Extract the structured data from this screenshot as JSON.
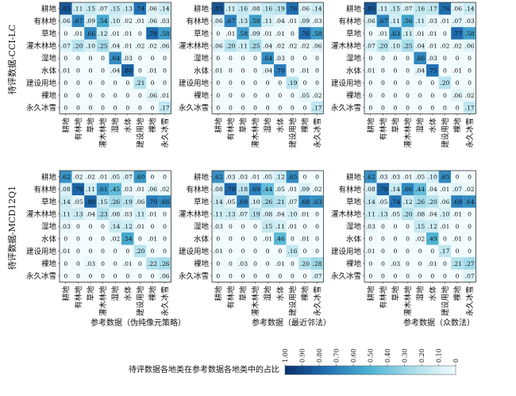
{
  "chart_data": {
    "type": "heatmap",
    "categories": [
      "耕地",
      "有林地",
      "草地",
      "灌木林地",
      "湿地",
      "水体",
      "建设用地",
      "裸地",
      "永久冰雪"
    ],
    "row_titles": [
      "待评数据-CCI-LC",
      "待评数据-MCD12Q1"
    ],
    "column_titles": [
      "参考数据（伪纯像元策略）",
      "参考数据（最近邻法）",
      "参考数据（众数法）"
    ],
    "colorbar": {
      "label": "待评数据各地类在参考数据各地类中的占比",
      "ticks": [
        "1.00",
        "0.90",
        "0.80",
        "0.70",
        "0.60",
        "0.50",
        "0.40",
        "0.30",
        "0.20",
        "0.10",
        "0"
      ],
      "range": [
        1.0,
        0.0
      ]
    },
    "panels": [
      {
        "row": 0,
        "col": 0,
        "values": [
          [
            0.85,
            0.11,
            0.15,
            0.07,
            0.15,
            0.13,
            0.74,
            0.06,
            0.14
          ],
          [
            0.06,
            0.67,
            0.09,
            0.54,
            0.1,
            0.02,
            0.01,
            0.06,
            0.03
          ],
          [
            0,
            0.01,
            0.66,
            0.12,
            0.01,
            0.01,
            0,
            0.78,
            0.58
          ],
          [
            0.07,
            0.2,
            0.1,
            0.25,
            0.04,
            0.01,
            0.02,
            0.02,
            0.06
          ],
          [
            0,
            0,
            0,
            0,
            0.64,
            0.03,
            0,
            0,
            0
          ],
          [
            0.01,
            0,
            0,
            0,
            0.04,
            0.8,
            0,
            0.01,
            0
          ],
          [
            0,
            0,
            0,
            0,
            0,
            0,
            0.21,
            0,
            0
          ],
          [
            0,
            0,
            0,
            0,
            0,
            0,
            0,
            0.06,
            0.01
          ],
          [
            0,
            0,
            0,
            0,
            0,
            0,
            0,
            0,
            0.17
          ]
        ]
      },
      {
        "row": 0,
        "col": 1,
        "values": [
          [
            0.85,
            0.11,
            0.16,
            0.08,
            0.16,
            0.19,
            0.76,
            0.06,
            0.14
          ],
          [
            0.06,
            0.67,
            0.13,
            0.58,
            0.11,
            0.04,
            0.01,
            0.09,
            0.03
          ],
          [
            0,
            0.01,
            0.58,
            0.09,
            0.01,
            0.01,
            0,
            0.76,
            0.58
          ],
          [
            0.06,
            0.2,
            0.11,
            0.25,
            0.04,
            0.02,
            0.02,
            0.02,
            0.06
          ],
          [
            0,
            0,
            0,
            0,
            0.64,
            0.03,
            0,
            0,
            0
          ],
          [
            0.01,
            0,
            0,
            0,
            0.04,
            0.7,
            0,
            0.01,
            0
          ],
          [
            0,
            0,
            0,
            0,
            0,
            0,
            0.19,
            0,
            0
          ],
          [
            0,
            0,
            0,
            0,
            0,
            0,
            0,
            0.05,
            0.02
          ],
          [
            0,
            0,
            0,
            0,
            0,
            0,
            0,
            0,
            0.17
          ]
        ]
      },
      {
        "row": 0,
        "col": 2,
        "values": [
          [
            0.85,
            0.11,
            0.15,
            0.07,
            0.16,
            0.17,
            0.76,
            0.06,
            0.14
          ],
          [
            0.06,
            0.67,
            0.11,
            0.56,
            0.11,
            0.03,
            0.01,
            0.07,
            0.03
          ],
          [
            0,
            0.01,
            0.63,
            0.11,
            0.01,
            0.01,
            0,
            0.77,
            0.58
          ],
          [
            0.07,
            0.2,
            0.1,
            0.25,
            0.04,
            0.01,
            0.02,
            0.02,
            0.06
          ],
          [
            0,
            0,
            0,
            0,
            0.66,
            0.03,
            0,
            0,
            0
          ],
          [
            0.01,
            0,
            0,
            0,
            0.04,
            0.75,
            0,
            0.01,
            0
          ],
          [
            0,
            0,
            0,
            0,
            0,
            0,
            0.2,
            0,
            0
          ],
          [
            0,
            0,
            0,
            0,
            0,
            0,
            0,
            0.06,
            0.02
          ],
          [
            0,
            0,
            0,
            0,
            0,
            0,
            0,
            0,
            0.17
          ]
        ]
      },
      {
        "row": 1,
        "col": 0,
        "values": [
          [
            0.62,
            0.02,
            0.02,
            0.01,
            0.05,
            0.07,
            0.6,
            0,
            0
          ],
          [
            0.08,
            0.79,
            0.11,
            0.61,
            0.45,
            0.03,
            0.01,
            0.06,
            0.02
          ],
          [
            0.14,
            0.05,
            0.8,
            0.15,
            0.26,
            0.19,
            0.06,
            0.7,
            0.66
          ],
          [
            0.11,
            0.13,
            0.04,
            0.23,
            0.08,
            0.03,
            0.11,
            0.01,
            0
          ],
          [
            0.03,
            0,
            0,
            0,
            0.14,
            0.12,
            0.01,
            0,
            0
          ],
          [
            0,
            0,
            0,
            0,
            0.02,
            0.54,
            0,
            0.01,
            0
          ],
          [
            0.01,
            0,
            0,
            0,
            0,
            0,
            0.2,
            0,
            0
          ],
          [
            0,
            0,
            0.03,
            0,
            0,
            0.01,
            0,
            0.22,
            0.26
          ],
          [
            0,
            0,
            0,
            0,
            0,
            0,
            0,
            0,
            0.06
          ]
        ]
      },
      {
        "row": 1,
        "col": 1,
        "values": [
          [
            0.62,
            0.03,
            0.03,
            0.01,
            0.05,
            0.12,
            0.65,
            0,
            0
          ],
          [
            0.08,
            0.79,
            0.18,
            0.69,
            0.44,
            0.05,
            0.01,
            0.09,
            0.02
          ],
          [
            0.14,
            0.05,
            0.69,
            0.1,
            0.26,
            0.21,
            0.07,
            0.68,
            0.63
          ],
          [
            0.11,
            0.13,
            0.07,
            0.19,
            0.08,
            0.04,
            0.1,
            0.01,
            0
          ],
          [
            0.03,
            0,
            0,
            0,
            0.15,
            0.11,
            0.01,
            0,
            0
          ],
          [
            0,
            0,
            0,
            0,
            0.01,
            0.46,
            0,
            0.01,
            0
          ],
          [
            0.01,
            0,
            0,
            0,
            0,
            0,
            0.16,
            0,
            0
          ],
          [
            0,
            0,
            0.03,
            0,
            0,
            0.01,
            0,
            0.2,
            0.28
          ],
          [
            0,
            0,
            0,
            0,
            0,
            0,
            0,
            0,
            0.07
          ]
        ]
      },
      {
        "row": 1,
        "col": 2,
        "values": [
          [
            0.62,
            0.03,
            0.03,
            0.01,
            0.05,
            0.1,
            0.65,
            0,
            0
          ],
          [
            0.08,
            0.79,
            0.14,
            0.66,
            0.44,
            0.04,
            0.01,
            0.07,
            0.02
          ],
          [
            0.14,
            0.05,
            0.74,
            0.12,
            0.26,
            0.2,
            0.06,
            0.69,
            0.64
          ],
          [
            0.11,
            0.13,
            0.05,
            0.2,
            0.08,
            0.04,
            0.1,
            0.01,
            0
          ],
          [
            0.03,
            0,
            0,
            0,
            0.15,
            0.12,
            0.01,
            0,
            0
          ],
          [
            0,
            0,
            0,
            0,
            0.02,
            0.49,
            0,
            0.01,
            0
          ],
          [
            0.01,
            0,
            0,
            0,
            0,
            0,
            0.17,
            0,
            0
          ],
          [
            0,
            0,
            0.03,
            0,
            0,
            0.01,
            0,
            0.21,
            0.27
          ],
          [
            0,
            0,
            0,
            0,
            0,
            0,
            0,
            0,
            0.07
          ]
        ]
      }
    ]
  }
}
